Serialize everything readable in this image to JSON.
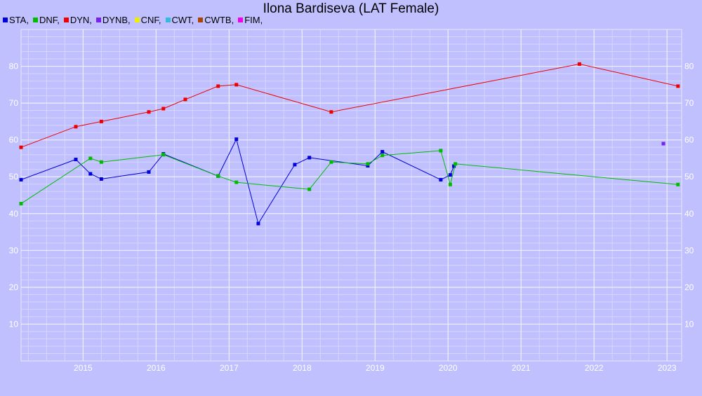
{
  "chart_data": {
    "type": "line",
    "title": "Ilona Bardiseva (LAT Female)",
    "xlabel": "",
    "ylabel": "",
    "xlim": [
      2014.15,
      2023.2
    ],
    "ylim": [
      0,
      90
    ],
    "x_ticks": [
      "2015",
      "2016",
      "2017",
      "2018",
      "2019",
      "2020",
      "2021",
      "2022",
      "2023"
    ],
    "y_ticks": [
      "10",
      "20",
      "30",
      "40",
      "50",
      "60",
      "70",
      "80"
    ],
    "grid": true,
    "legend_position": "top-left",
    "legend": [
      {
        "label": "STA,",
        "color": "#0000dd"
      },
      {
        "label": "DNF,",
        "color": "#00bb00"
      },
      {
        "label": "DYN,",
        "color": "#ee0000"
      },
      {
        "label": "DYNB,",
        "color": "#7722ee"
      },
      {
        "label": "CNF,",
        "color": "#eeee00"
      },
      {
        "label": "CWT,",
        "color": "#33bbdd"
      },
      {
        "label": "CWTB,",
        "color": "#aa4400"
      },
      {
        "label": "FIM,",
        "color": "#ee00ee"
      }
    ],
    "series": [
      {
        "name": "STA",
        "color": "#0000dd",
        "points": [
          [
            2014.15,
            49.2
          ],
          [
            2014.9,
            54.7
          ],
          [
            2015.1,
            50.8
          ],
          [
            2015.25,
            49.4
          ],
          [
            2015.9,
            51.3
          ],
          [
            2016.1,
            56.2
          ],
          [
            2016.85,
            50.2
          ],
          [
            2017.1,
            60.2
          ],
          [
            2017.4,
            37.3
          ],
          [
            2017.9,
            53.3
          ],
          [
            2018.1,
            55.2
          ],
          [
            2018.9,
            53.0
          ],
          [
            2019.1,
            56.8
          ],
          [
            2019.9,
            49.2
          ],
          [
            2020.03,
            50.5
          ],
          [
            2020.08,
            52.9
          ]
        ]
      },
      {
        "name": "DNF",
        "color": "#00bb00",
        "points": [
          [
            2014.15,
            42.7
          ],
          [
            2015.1,
            55.0
          ],
          [
            2015.25,
            54.0
          ],
          [
            2016.1,
            56.0
          ],
          [
            2016.85,
            50.2
          ],
          [
            2017.1,
            48.5
          ],
          [
            2018.1,
            46.6
          ],
          [
            2018.4,
            54.0
          ],
          [
            2018.9,
            53.5
          ],
          [
            2019.1,
            55.8
          ],
          [
            2019.9,
            57.1
          ],
          [
            2020.03,
            47.9
          ],
          [
            2020.1,
            53.5
          ],
          [
            2023.15,
            47.9
          ]
        ]
      },
      {
        "name": "DYN",
        "color": "#ee0000",
        "points": [
          [
            2014.15,
            58.0
          ],
          [
            2014.9,
            63.6
          ],
          [
            2015.25,
            65.0
          ],
          [
            2015.9,
            67.6
          ],
          [
            2016.1,
            68.5
          ],
          [
            2016.4,
            71.0
          ],
          [
            2016.85,
            74.6
          ],
          [
            2017.1,
            75.0
          ],
          [
            2018.4,
            67.6
          ],
          [
            2021.8,
            80.6
          ],
          [
            2023.15,
            74.6
          ]
        ]
      },
      {
        "name": "DYNB",
        "color": "#7722ee",
        "points": [
          [
            2022.95,
            59.0
          ]
        ]
      }
    ]
  }
}
